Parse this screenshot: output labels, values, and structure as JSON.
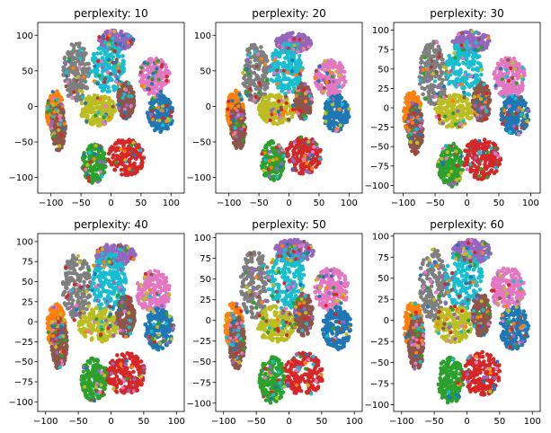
{
  "chart_data": [
    {
      "type": "scatter",
      "title": "perplexity: 10",
      "xticks": [
        -100,
        -50,
        0,
        50,
        100
      ],
      "yticks": [
        -100,
        -50,
        0,
        50,
        100
      ],
      "xlim": [
        -122,
        122
      ],
      "ylim": [
        -122,
        118
      ],
      "spread": 1.0
    },
    {
      "type": "scatter",
      "title": "perplexity: 20",
      "xticks": [
        -100,
        -50,
        0,
        50,
        100
      ],
      "yticks": [
        -100,
        -50,
        0,
        50,
        100
      ],
      "xlim": [
        -122,
        122
      ],
      "ylim": [
        -122,
        118
      ],
      "spread": 0.96
    },
    {
      "type": "scatter",
      "title": "perplexity: 30",
      "xticks": [
        -100,
        -50,
        0,
        50,
        100
      ],
      "yticks": [
        -100,
        -75,
        -50,
        -25,
        0,
        25,
        50,
        75,
        100
      ],
      "xlim": [
        -115,
        115
      ],
      "ylim": [
        -110,
        110
      ],
      "spread": 0.92
    },
    {
      "type": "scatter",
      "title": "perplexity: 40",
      "xticks": [
        -100,
        -50,
        0,
        50,
        100
      ],
      "yticks": [
        -100,
        -75,
        -50,
        -25,
        0,
        25,
        50,
        75,
        100
      ],
      "xlim": [
        -112,
        112
      ],
      "ylim": [
        -112,
        110
      ],
      "spread": 0.9
    },
    {
      "type": "scatter",
      "title": "perplexity: 50",
      "xticks": [
        -100,
        -50,
        0,
        50,
        100
      ],
      "yticks": [
        -100,
        -75,
        -50,
        -25,
        0,
        25,
        50,
        75,
        100
      ],
      "xlim": [
        -112,
        112
      ],
      "ylim": [
        -110,
        105
      ],
      "spread": 0.9
    },
    {
      "type": "scatter",
      "title": "perplexity: 60",
      "xticks": [
        -100,
        -50,
        0,
        50,
        100
      ],
      "yticks": [
        -100,
        -75,
        -50,
        -25,
        0,
        25,
        50,
        75,
        100
      ],
      "xlim": [
        -112,
        112
      ],
      "ylim": [
        -108,
        103
      ],
      "spread": 0.88
    }
  ],
  "clusters": [
    {
      "color": "#7f7f7f",
      "center": [
        -58,
        48
      ],
      "radius": [
        22,
        42
      ]
    },
    {
      "color": "#9467bd",
      "center": [
        8,
        93
      ],
      "radius": [
        30,
        14
      ]
    },
    {
      "color": "#17becf",
      "center": [
        -5,
        55
      ],
      "radius": [
        28,
        36
      ]
    },
    {
      "color": "#e377c2",
      "center": [
        72,
        42
      ],
      "radius": [
        26,
        26
      ]
    },
    {
      "color": "#ff7f0e",
      "center": [
        -93,
        -8
      ],
      "radius": [
        14,
        30
      ]
    },
    {
      "color": "#8c564b",
      "center": [
        -88,
        -30
      ],
      "radius": [
        12,
        32
      ]
    },
    {
      "color": "#bcbd22",
      "center": [
        -22,
        -5
      ],
      "radius": [
        30,
        22
      ]
    },
    {
      "color": "#8c564b",
      "center": [
        25,
        8
      ],
      "radius": [
        14,
        26
      ]
    },
    {
      "color": "#1f77b4",
      "center": [
        82,
        -10
      ],
      "radius": [
        22,
        26
      ]
    },
    {
      "color": "#2ca02c",
      "center": [
        -28,
        -80
      ],
      "radius": [
        20,
        28
      ]
    },
    {
      "color": "#d62728",
      "center": [
        25,
        -72
      ],
      "radius": [
        30,
        26
      ]
    }
  ]
}
